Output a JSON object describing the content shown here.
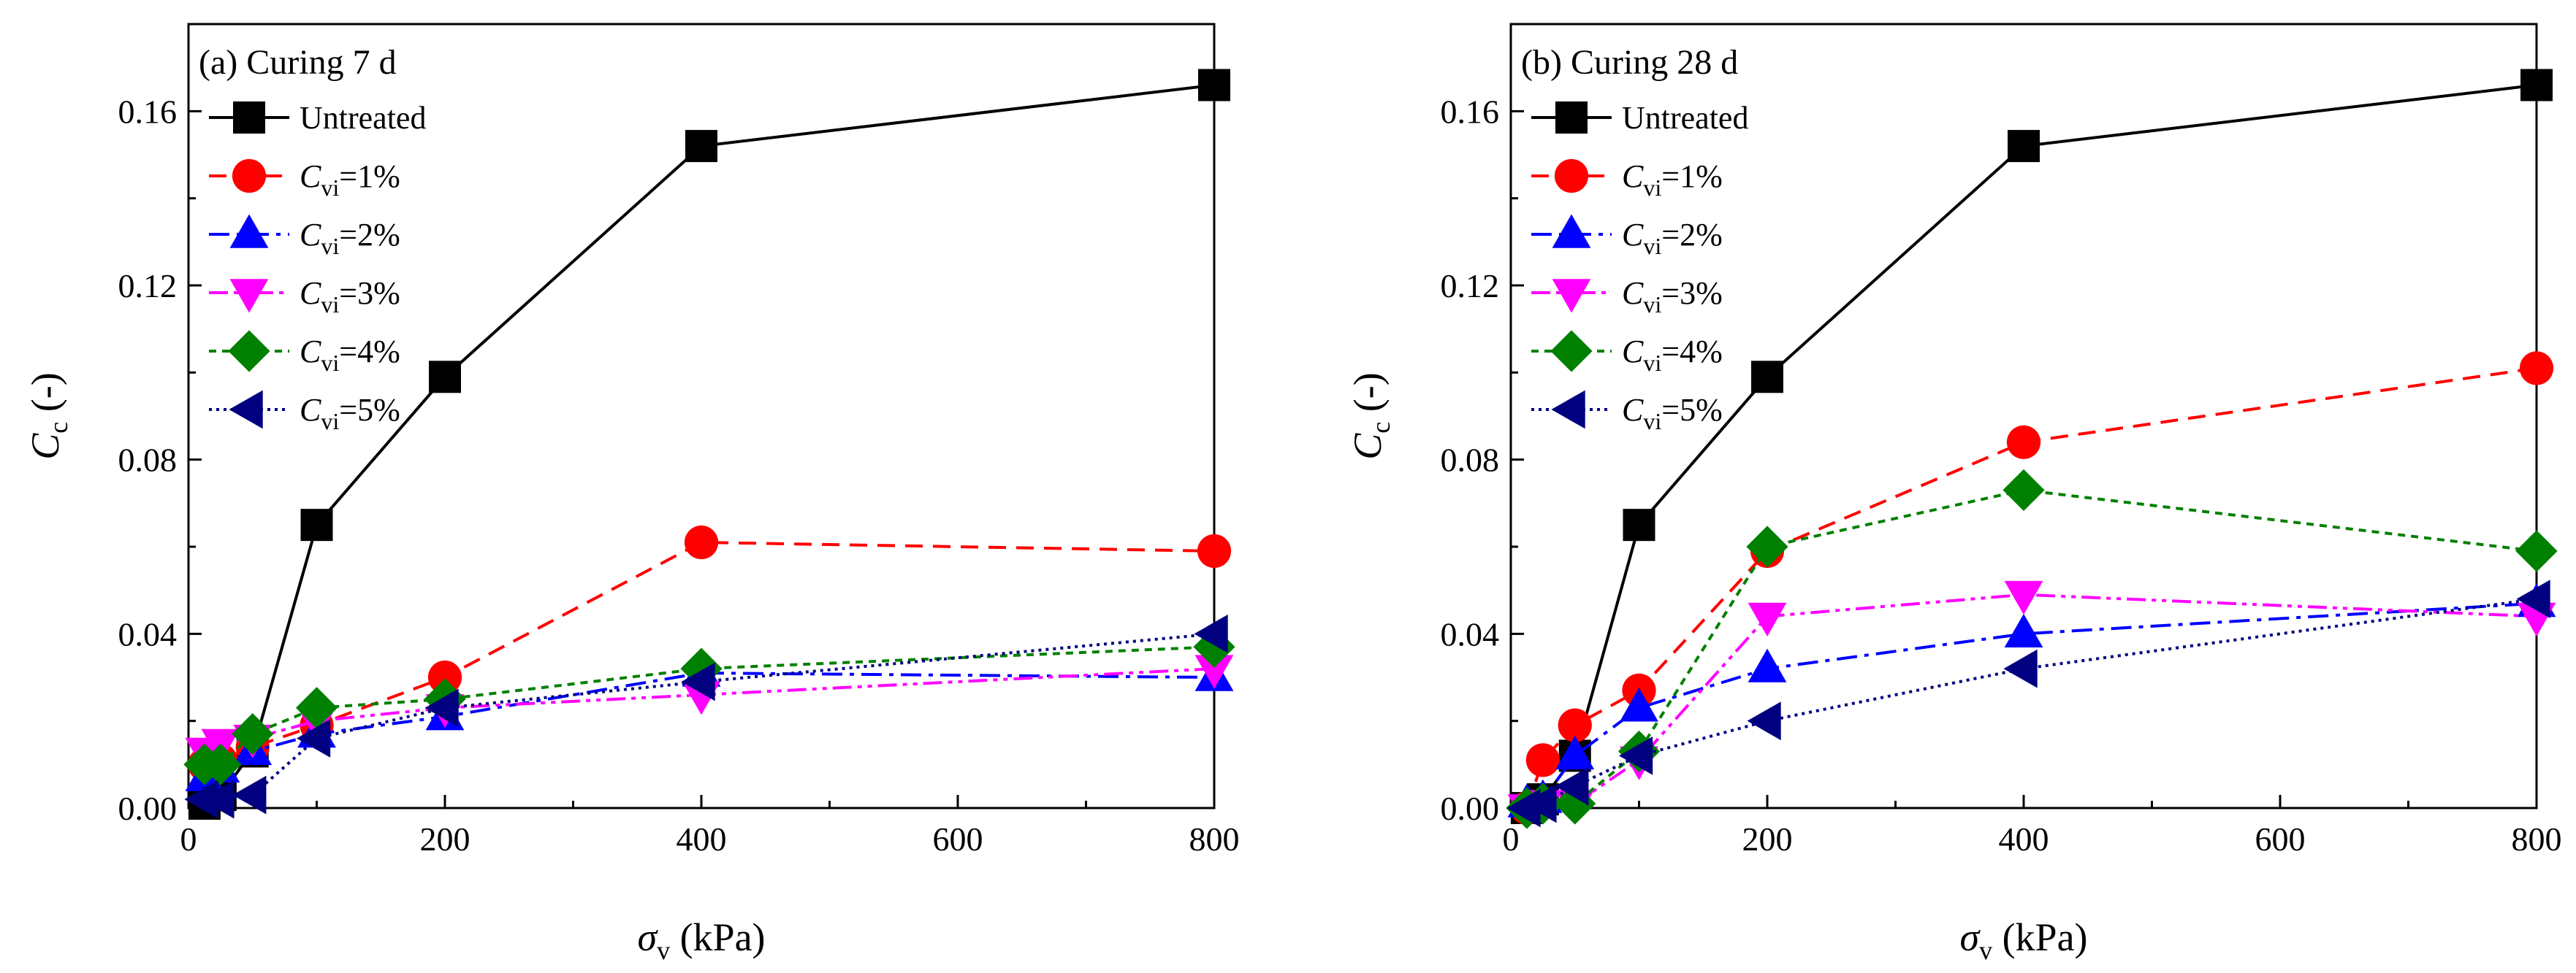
{
  "chart_data": [
    {
      "type": "line",
      "title": "(a) Curing 7 d",
      "xlabel": {
        "symbol": "σ",
        "sub": "v",
        "unit": " (kPa)"
      },
      "ylabel": {
        "symbol": "C",
        "sub": "c",
        "unit": " (-)"
      },
      "xlim": [
        0,
        800
      ],
      "ylim": [
        0,
        0.18
      ],
      "x_ticks": [
        0,
        200,
        400,
        600,
        800
      ],
      "x_tick_labels": [
        "0",
        "200",
        "400",
        "600",
        "800"
      ],
      "y_ticks": [
        0,
        0.04,
        0.08,
        0.12,
        0.16
      ],
      "y_tick_labels": [
        "0.00",
        "0.04",
        "0.08",
        "0.12",
        "0.16"
      ],
      "legend_position": "top-left",
      "series": [
        {
          "name": "Untreated",
          "key": "untreated",
          "x": [
            12.5,
            25,
            50,
            100,
            200,
            400,
            800
          ],
          "values": [
            0.001,
            0.003,
            0.013,
            0.065,
            0.099,
            0.152,
            0.166
          ]
        },
        {
          "name": "=1%",
          "key": "cvi1",
          "x": [
            12.5,
            25,
            50,
            100,
            200,
            400,
            800
          ],
          "values": [
            0.01,
            0.011,
            0.014,
            0.019,
            0.03,
            0.061,
            0.059
          ]
        },
        {
          "name": "=2%",
          "key": "cvi2",
          "x": [
            12.5,
            25,
            50,
            100,
            200,
            400,
            800
          ],
          "values": [
            0.007,
            0.009,
            0.013,
            0.017,
            0.021,
            0.031,
            0.03
          ]
        },
        {
          "name": "=3%",
          "key": "cvi3",
          "x": [
            12.5,
            25,
            50,
            100,
            200,
            400,
            800
          ],
          "values": [
            0.013,
            0.015,
            0.016,
            0.02,
            0.023,
            0.026,
            0.032
          ]
        },
        {
          "name": "=4%",
          "key": "cvi4",
          "x": [
            12.5,
            25,
            50,
            100,
            200,
            400,
            800
          ],
          "values": [
            0.01,
            0.01,
            0.017,
            0.023,
            0.025,
            0.032,
            0.037
          ]
        },
        {
          "name": "=5%",
          "key": "cvi5",
          "x": [
            12.5,
            25,
            50,
            100,
            200,
            400,
            800
          ],
          "values": [
            0.002,
            0.002,
            0.003,
            0.016,
            0.023,
            0.029,
            0.04
          ]
        }
      ]
    },
    {
      "type": "line",
      "title": "(b) Curing 28 d",
      "xlabel": {
        "symbol": "σ",
        "sub": "v",
        "unit": " (kPa)"
      },
      "ylabel": {
        "symbol": "C",
        "sub": "c",
        "unit": " (-)"
      },
      "xlim": [
        0,
        800
      ],
      "ylim": [
        0,
        0.18
      ],
      "x_ticks": [
        0,
        200,
        400,
        600,
        800
      ],
      "x_tick_labels": [
        "0",
        "200",
        "400",
        "600",
        "800"
      ],
      "y_ticks": [
        0,
        0.04,
        0.08,
        0.12,
        0.16
      ],
      "y_tick_labels": [
        "0.00",
        "0.04",
        "0.08",
        "0.12",
        "0.16"
      ],
      "legend_position": "top-left",
      "series": [
        {
          "name": "Untreated",
          "key": "untreated",
          "x": [
            12.5,
            25,
            50,
            100,
            200,
            400,
            800
          ],
          "values": [
            0.0,
            0.002,
            0.012,
            0.065,
            0.099,
            0.152,
            0.166
          ]
        },
        {
          "name": "=1%",
          "key": "cvi1",
          "x": [
            12.5,
            25,
            50,
            100,
            200,
            400,
            800
          ],
          "values": [
            0.0,
            0.011,
            0.019,
            0.027,
            0.059,
            0.084,
            0.101
          ]
        },
        {
          "name": "=2%",
          "key": "cvi2",
          "x": [
            12.5,
            25,
            50,
            100,
            200,
            400,
            800
          ],
          "values": [
            0.001,
            0.002,
            0.012,
            0.023,
            0.032,
            0.04,
            0.047
          ]
        },
        {
          "name": "=3%",
          "key": "cvi3",
          "x": [
            12.5,
            25,
            50,
            100,
            200,
            400,
            800
          ],
          "values": [
            0.0,
            0.001,
            0.001,
            0.011,
            0.044,
            0.049,
            0.044
          ]
        },
        {
          "name": "=4%",
          "key": "cvi4",
          "x": [
            12.5,
            25,
            50,
            100,
            200,
            400,
            800
          ],
          "values": [
            0.0,
            0.001,
            0.001,
            0.013,
            0.06,
            0.073,
            0.059
          ]
        },
        {
          "name": "=5%",
          "key": "cvi5",
          "x": [
            12.5,
            25,
            50,
            100,
            200,
            400,
            800
          ],
          "values": [
            0.0,
            0.001,
            0.005,
            0.012,
            0.02,
            0.032,
            0.048
          ]
        }
      ]
    }
  ],
  "legend_symbol": {
    "letter": "C",
    "sub": "vi"
  },
  "styles": {
    "untreated": {
      "color": "#000000",
      "dash": "",
      "marker": "square"
    },
    "cvi1": {
      "color": "#ff0000",
      "dash": "24,14",
      "marker": "circle"
    },
    "cvi2": {
      "color": "#0000ff",
      "dash": "28,10,6,10",
      "marker": "triangle-up"
    },
    "cvi3": {
      "color": "#ff00ff",
      "dash": "26,8,6,8,6,8",
      "marker": "triangle-down"
    },
    "cvi4": {
      "color": "#008000",
      "dash": "10,8",
      "marker": "diamond"
    },
    "cvi5": {
      "color": "#000080",
      "dash": "4,6",
      "marker": "triangle-left"
    }
  }
}
